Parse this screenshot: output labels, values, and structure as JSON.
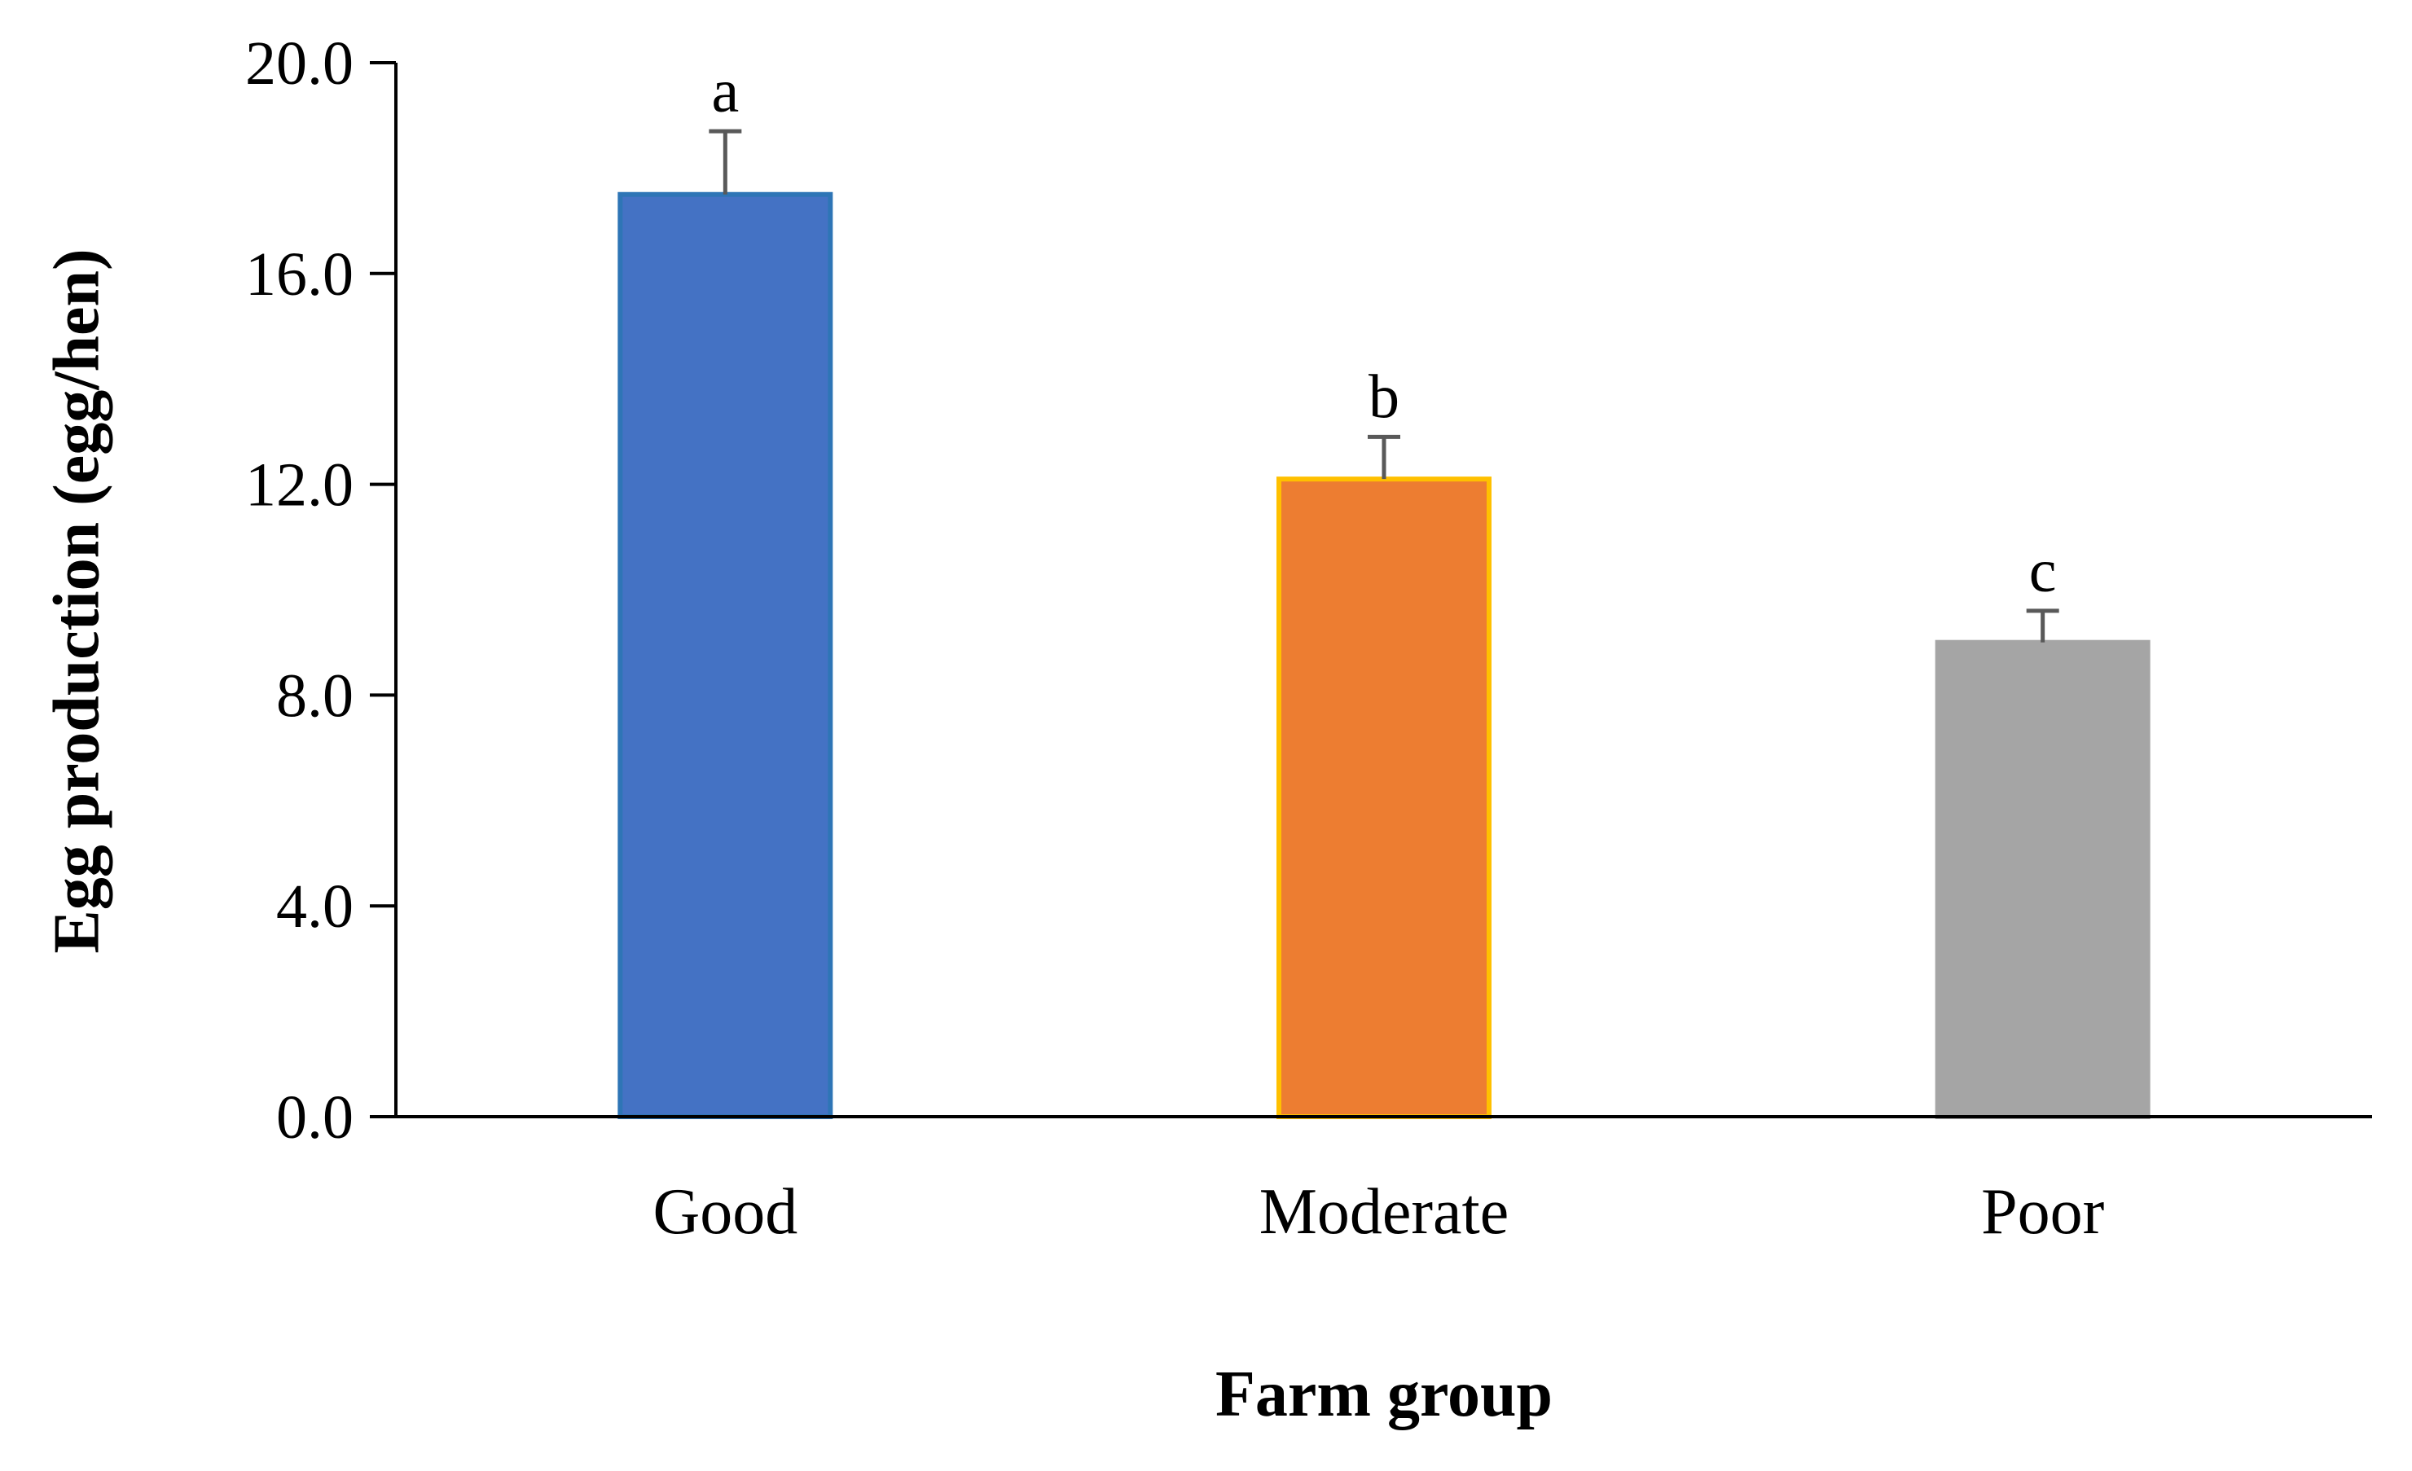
{
  "chart_data": {
    "type": "bar",
    "title": "",
    "xlabel": "Farm group",
    "ylabel": "Egg production (egg/hen)",
    "categories": [
      "Good",
      "Moderate",
      "Poor"
    ],
    "values": [
      17.5,
      12.1,
      9.0
    ],
    "errors": [
      1.2,
      0.8,
      0.6
    ],
    "significance_letters": [
      "a",
      "b",
      "c"
    ],
    "ylim": [
      0,
      20
    ],
    "yticks": [
      0,
      4,
      8,
      12,
      16,
      20
    ],
    "ytick_labels": [
      "0.0",
      "4.0",
      "8.0",
      "12.0",
      "16.0",
      "20.0"
    ],
    "grid": false,
    "legend": "none",
    "colors": {
      "fills": [
        "#4472C4",
        "#ED7D31",
        "#A5A5A5"
      ],
      "strokes": [
        "#2E75B6",
        "#FFC000",
        "#A5A5A5"
      ],
      "axis": "#000000",
      "error_bar": "#595959",
      "text": "#000000"
    }
  }
}
